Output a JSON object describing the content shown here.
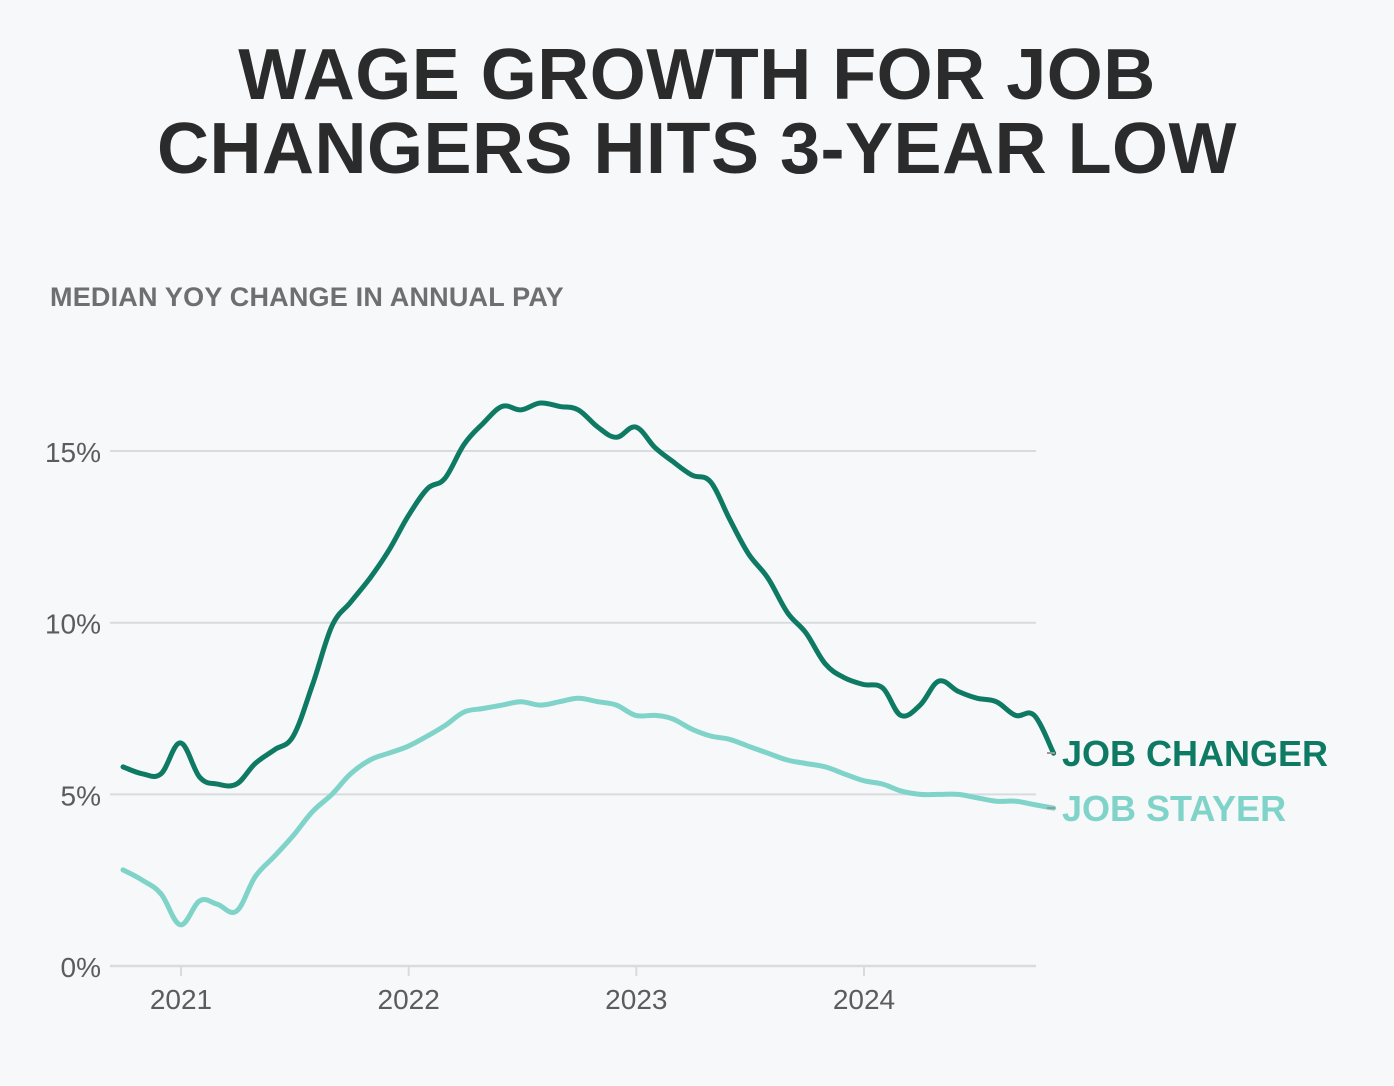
{
  "title_line1": "WAGE GROWTH FOR JOB",
  "title_line2": "CHANGERS HITS 3-YEAR LOW",
  "subtitle": "MEDIAN YOY CHANGE IN ANNUAL PAY",
  "colors": {
    "job_changer": "#0e7a63",
    "job_stayer": "#7fd3c8",
    "grid": "#d9dcdf",
    "axis_text": "#5c5c5c",
    "title": "#2b2b2b",
    "background": "#f6f8fa"
  },
  "chart_data": {
    "type": "line",
    "title": "WAGE GROWTH FOR JOB CHANGERS HITS 3-YEAR LOW",
    "ylabel": "MEDIAN YOY CHANGE IN ANNUAL PAY",
    "xlabel": "",
    "ylim": [
      0,
      17
    ],
    "xlim": [
      "2020-09-30",
      "2024-10-31"
    ],
    "yticks": [
      0,
      5,
      10,
      15
    ],
    "ytick_labels": [
      "0%",
      "5%",
      "10%",
      "15%"
    ],
    "xticks": [
      "2021-01-01",
      "2022-01-01",
      "2023-01-01",
      "2024-01-01"
    ],
    "xtick_labels": [
      "2021",
      "2022",
      "2023",
      "2024"
    ],
    "grid": true,
    "legend": "end-of-line labels (right)",
    "x": [
      "2020-09-30",
      "2020-10-31",
      "2020-11-30",
      "2020-12-31",
      "2021-01-31",
      "2021-02-28",
      "2021-03-31",
      "2021-04-30",
      "2021-05-31",
      "2021-06-30",
      "2021-07-31",
      "2021-08-31",
      "2021-09-30",
      "2021-10-31",
      "2021-11-30",
      "2021-12-31",
      "2022-01-31",
      "2022-02-28",
      "2022-03-31",
      "2022-04-30",
      "2022-05-31",
      "2022-06-30",
      "2022-07-31",
      "2022-08-31",
      "2022-09-30",
      "2022-10-31",
      "2022-11-30",
      "2022-12-31",
      "2023-01-31",
      "2023-02-28",
      "2023-03-31",
      "2023-04-30",
      "2023-05-31",
      "2023-06-30",
      "2023-07-31",
      "2023-08-31",
      "2023-09-30",
      "2023-10-31",
      "2023-11-30",
      "2023-12-31",
      "2024-01-31",
      "2024-02-29",
      "2024-03-31",
      "2024-04-30",
      "2024-05-31",
      "2024-06-30",
      "2024-07-31",
      "2024-08-31",
      "2024-09-30",
      "2024-10-31"
    ],
    "series": [
      {
        "name": "JOB CHANGER",
        "values": [
          5.8,
          5.6,
          5.6,
          6.5,
          5.5,
          5.3,
          5.3,
          5.9,
          6.3,
          6.7,
          8.2,
          9.9,
          10.6,
          11.3,
          12.1,
          13.1,
          13.9,
          14.2,
          15.2,
          15.8,
          16.3,
          16.2,
          16.4,
          16.3,
          16.2,
          15.7,
          15.4,
          15.7,
          15.1,
          14.7,
          14.3,
          14.1,
          13.0,
          12.0,
          11.3,
          10.3,
          9.7,
          8.8,
          8.4,
          8.2,
          8.1,
          7.3,
          7.6,
          8.3,
          8.0,
          7.8,
          7.7,
          7.3,
          7.3,
          6.2
        ]
      },
      {
        "name": "JOB STAYER",
        "values": [
          2.8,
          2.5,
          2.1,
          1.2,
          1.9,
          1.8,
          1.6,
          2.6,
          3.2,
          3.8,
          4.5,
          5.0,
          5.6,
          6.0,
          6.2,
          6.4,
          6.7,
          7.0,
          7.4,
          7.5,
          7.6,
          7.7,
          7.6,
          7.7,
          7.8,
          7.7,
          7.6,
          7.3,
          7.3,
          7.2,
          6.9,
          6.7,
          6.6,
          6.4,
          6.2,
          6.0,
          5.9,
          5.8,
          5.6,
          5.4,
          5.3,
          5.1,
          5.0,
          5.0,
          5.0,
          4.9,
          4.8,
          4.8,
          4.7,
          4.6
        ]
      }
    ]
  }
}
